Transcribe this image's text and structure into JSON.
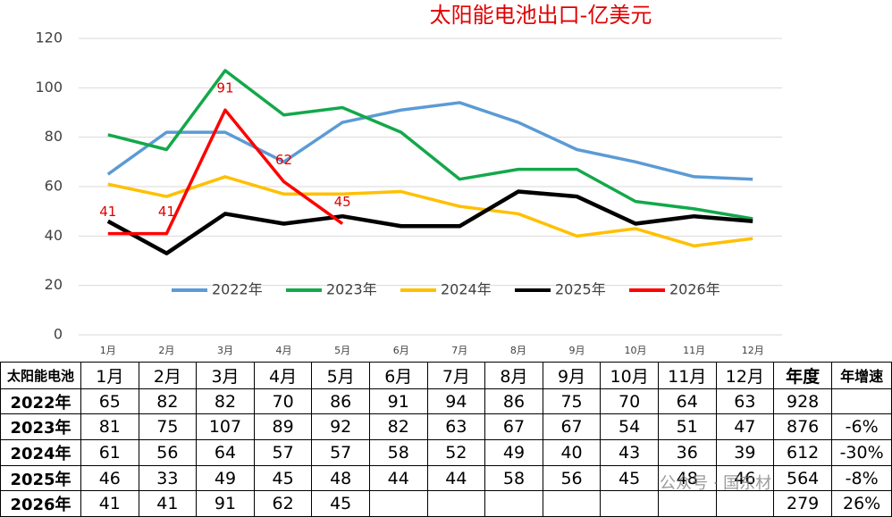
{
  "chart_data": {
    "type": "line",
    "title": "太阳能电池出口-亿美元",
    "categories": [
      "1月",
      "2月",
      "3月",
      "4月",
      "5月",
      "6月",
      "7月",
      "8月",
      "9月",
      "10月",
      "11月",
      "12月"
    ],
    "ylim": [
      0,
      120
    ],
    "yticks": [
      0,
      20,
      40,
      60,
      80,
      100,
      120
    ],
    "grid": true,
    "legend": "bottom",
    "series": [
      {
        "name": "2022年",
        "color": "#5b9bd5",
        "values": [
          65,
          82,
          82,
          70,
          86,
          91,
          94,
          86,
          75,
          70,
          64,
          63
        ]
      },
      {
        "name": "2023年",
        "color": "#13a84a",
        "values": [
          81,
          75,
          107,
          89,
          92,
          82,
          63,
          67,
          67,
          54,
          51,
          47
        ]
      },
      {
        "name": "2024年",
        "color": "#ffc000",
        "values": [
          61,
          56,
          64,
          57,
          57,
          58,
          52,
          49,
          40,
          43,
          36,
          39
        ]
      },
      {
        "name": "2025年",
        "color": "#000000",
        "values": [
          46,
          33,
          49,
          45,
          48,
          44,
          44,
          58,
          56,
          45,
          48,
          46
        ]
      },
      {
        "name": "2026年",
        "color": "#ff0000",
        "values": [
          41,
          41,
          91,
          62,
          45,
          null,
          null,
          null,
          null,
          null,
          null,
          null
        ],
        "data_labels": true
      }
    ]
  },
  "table": {
    "header": [
      "太阳能电池",
      "1月",
      "2月",
      "3月",
      "4月",
      "5月",
      "6月",
      "7月",
      "8月",
      "9月",
      "10月",
      "11月",
      "12月",
      "年度",
      "年增速"
    ],
    "rows": [
      [
        "2022年",
        65,
        82,
        82,
        70,
        86,
        91,
        94,
        86,
        75,
        70,
        64,
        63,
        928,
        null
      ],
      [
        "2023年",
        81,
        75,
        107,
        89,
        92,
        82,
        63,
        67,
        67,
        54,
        51,
        47,
        876,
        "-6%"
      ],
      [
        "2024年",
        61,
        56,
        64,
        57,
        57,
        58,
        52,
        49,
        40,
        43,
        36,
        39,
        612,
        "-30%"
      ],
      [
        "2025年",
        46,
        33,
        49,
        45,
        48,
        44,
        44,
        58,
        56,
        45,
        48,
        46,
        564,
        "-8%"
      ],
      [
        "2026年",
        41,
        41,
        91,
        62,
        45,
        null,
        null,
        null,
        null,
        null,
        null,
        null,
        279,
        "26%"
      ]
    ]
  },
  "watermark": "公众号 · 国东材"
}
